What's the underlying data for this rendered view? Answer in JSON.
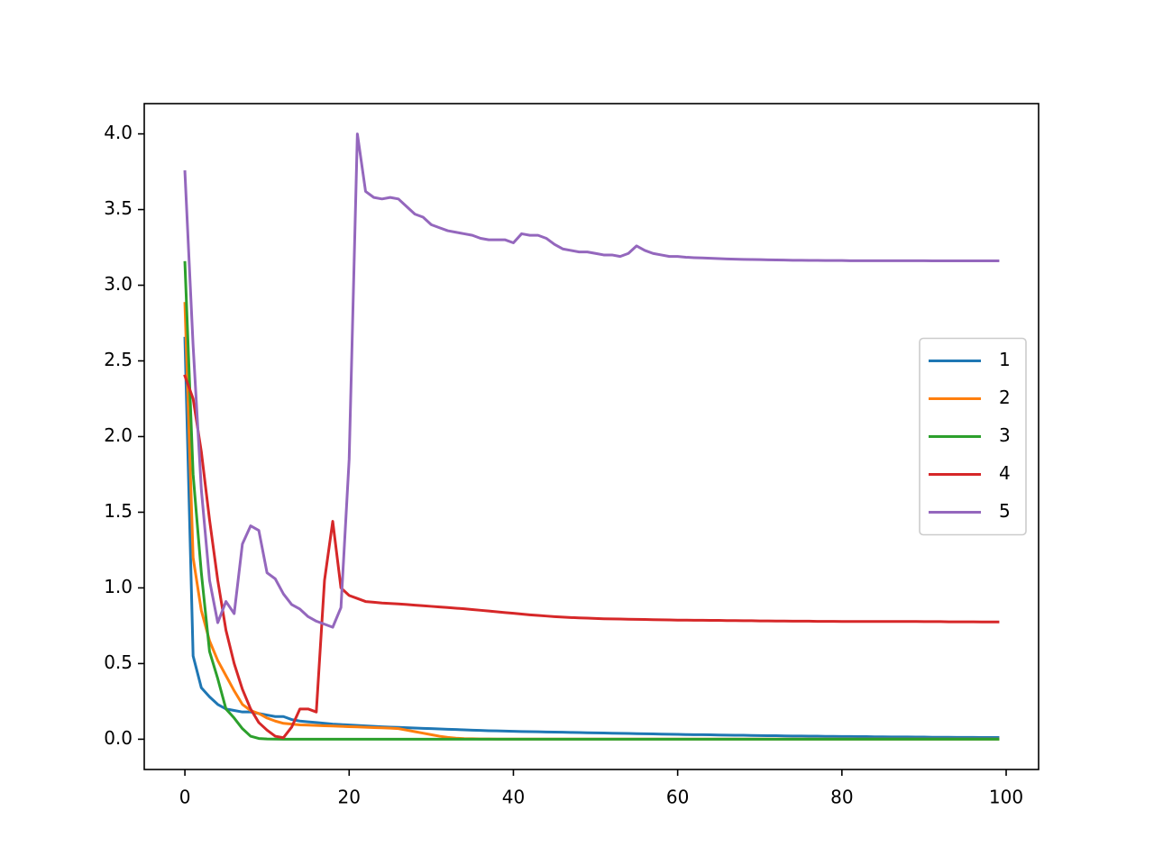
{
  "chart_data": {
    "type": "line",
    "x": [
      0,
      1,
      2,
      3,
      4,
      5,
      6,
      7,
      8,
      9,
      10,
      11,
      12,
      13,
      14,
      15,
      16,
      17,
      18,
      19,
      20,
      21,
      22,
      23,
      24,
      25,
      26,
      27,
      28,
      29,
      30,
      31,
      32,
      33,
      34,
      35,
      36,
      37,
      38,
      39,
      40,
      41,
      42,
      43,
      44,
      45,
      46,
      47,
      48,
      49,
      50,
      51,
      52,
      53,
      54,
      55,
      56,
      57,
      58,
      59,
      60,
      61,
      62,
      63,
      64,
      65,
      66,
      67,
      68,
      69,
      70,
      71,
      72,
      73,
      74,
      75,
      76,
      77,
      78,
      79,
      80,
      81,
      82,
      83,
      84,
      85,
      86,
      87,
      88,
      89,
      90,
      91,
      92,
      93,
      94,
      95,
      96,
      97,
      98,
      99
    ],
    "series": [
      {
        "name": "1",
        "color": "#1f77b4",
        "values": [
          2.65,
          0.55,
          0.34,
          0.28,
          0.23,
          0.2,
          0.19,
          0.18,
          0.18,
          0.17,
          0.16,
          0.15,
          0.15,
          0.13,
          0.12,
          0.115,
          0.11,
          0.105,
          0.1,
          0.097,
          0.094,
          0.091,
          0.088,
          0.085,
          0.082,
          0.08,
          0.078,
          0.076,
          0.074,
          0.072,
          0.07,
          0.068,
          0.066,
          0.064,
          0.062,
          0.06,
          0.058,
          0.056,
          0.055,
          0.054,
          0.052,
          0.051,
          0.05,
          0.049,
          0.048,
          0.047,
          0.046,
          0.045,
          0.044,
          0.043,
          0.042,
          0.041,
          0.04,
          0.039,
          0.038,
          0.037,
          0.036,
          0.035,
          0.034,
          0.033,
          0.032,
          0.031,
          0.03,
          0.03,
          0.029,
          0.028,
          0.027,
          0.026,
          0.026,
          0.025,
          0.024,
          0.023,
          0.023,
          0.022,
          0.021,
          0.021,
          0.02,
          0.02,
          0.019,
          0.019,
          0.018,
          0.018,
          0.017,
          0.017,
          0.016,
          0.016,
          0.015,
          0.015,
          0.015,
          0.014,
          0.014,
          0.013,
          0.013,
          0.013,
          0.012,
          0.012,
          0.012,
          0.011,
          0.011,
          0.011
        ]
      },
      {
        "name": "2",
        "color": "#ff7f0e",
        "values": [
          2.88,
          1.2,
          0.85,
          0.65,
          0.52,
          0.42,
          0.32,
          0.23,
          0.19,
          0.17,
          0.14,
          0.12,
          0.105,
          0.1,
          0.095,
          0.093,
          0.091,
          0.089,
          0.087,
          0.085,
          0.083,
          0.081,
          0.079,
          0.077,
          0.075,
          0.073,
          0.07,
          0.06,
          0.05,
          0.04,
          0.03,
          0.02,
          0.012,
          0.007,
          0.004,
          0.003,
          0.002,
          0.002,
          0.001,
          0.001,
          0.001,
          0.001,
          0.001,
          0.001,
          0.001,
          0.001,
          0.001,
          0.001,
          0.001,
          0.001,
          0.001,
          0.001,
          0.001,
          0.001,
          0.001,
          0.001,
          0.001,
          0.001,
          0.001,
          0.001,
          0.001,
          0.001,
          0.001,
          0.001,
          0.001,
          0.001,
          0.001,
          0.001,
          0.001,
          0.001,
          0.001,
          0.001,
          0.001,
          0.001,
          0.001,
          0.001,
          0.001,
          0.001,
          0.001,
          0.001,
          0.001,
          0.001,
          0.001,
          0.001,
          0.001,
          0.001,
          0.001,
          0.001,
          0.001,
          0.001,
          0.001,
          0.001,
          0.001,
          0.001,
          0.001,
          0.001,
          0.001,
          0.001,
          0.001,
          0.001
        ]
      },
      {
        "name": "3",
        "color": "#2ca02c",
        "values": [
          3.15,
          1.75,
          1.1,
          0.58,
          0.4,
          0.2,
          0.14,
          0.07,
          0.02,
          0.005,
          0.002,
          0.001,
          0,
          0,
          0,
          0,
          0,
          0,
          0,
          0,
          0,
          0,
          0,
          0,
          0,
          0,
          0,
          0,
          0,
          0,
          0,
          0,
          0,
          0,
          0,
          0,
          0,
          0,
          0,
          0,
          0,
          0,
          0,
          0,
          0,
          0,
          0,
          0,
          0,
          0,
          0,
          0,
          0,
          0,
          0,
          0,
          0,
          0,
          0,
          0,
          0,
          0,
          0,
          0,
          0,
          0,
          0,
          0,
          0,
          0,
          0,
          0,
          0,
          0,
          0,
          0,
          0,
          0,
          0,
          0,
          0,
          0,
          0,
          0,
          0,
          0,
          0,
          0,
          0,
          0,
          0,
          0,
          0,
          0,
          0,
          0,
          0,
          0,
          0,
          0
        ]
      },
      {
        "name": "4",
        "color": "#d62728",
        "values": [
          2.4,
          2.25,
          1.9,
          1.45,
          1.05,
          0.72,
          0.5,
          0.33,
          0.2,
          0.11,
          0.06,
          0.02,
          0.01,
          0.08,
          0.2,
          0.2,
          0.18,
          1.05,
          1.44,
          1.0,
          0.95,
          0.93,
          0.91,
          0.905,
          0.9,
          0.897,
          0.894,
          0.89,
          0.886,
          0.882,
          0.878,
          0.874,
          0.87,
          0.866,
          0.862,
          0.857,
          0.852,
          0.847,
          0.842,
          0.837,
          0.832,
          0.827,
          0.822,
          0.818,
          0.814,
          0.81,
          0.807,
          0.804,
          0.802,
          0.8,
          0.798,
          0.796,
          0.795,
          0.794,
          0.793,
          0.792,
          0.791,
          0.79,
          0.789,
          0.788,
          0.787,
          0.787,
          0.786,
          0.786,
          0.785,
          0.785,
          0.784,
          0.784,
          0.783,
          0.783,
          0.782,
          0.782,
          0.781,
          0.781,
          0.78,
          0.78,
          0.78,
          0.779,
          0.779,
          0.779,
          0.778,
          0.778,
          0.778,
          0.778,
          0.778,
          0.778,
          0.778,
          0.778,
          0.778,
          0.778,
          0.777,
          0.777,
          0.777,
          0.776,
          0.776,
          0.776,
          0.776,
          0.775,
          0.775,
          0.775
        ]
      },
      {
        "name": "5",
        "color": "#9467bd",
        "values": [
          3.75,
          2.6,
          1.65,
          1.05,
          0.77,
          0.91,
          0.83,
          1.29,
          1.41,
          1.38,
          1.1,
          1.06,
          0.96,
          0.89,
          0.86,
          0.81,
          0.78,
          0.76,
          0.74,
          0.87,
          1.85,
          4.0,
          3.62,
          3.58,
          3.57,
          3.58,
          3.57,
          3.52,
          3.47,
          3.45,
          3.4,
          3.38,
          3.36,
          3.35,
          3.34,
          3.33,
          3.31,
          3.3,
          3.3,
          3.3,
          3.28,
          3.34,
          3.33,
          3.33,
          3.31,
          3.27,
          3.24,
          3.23,
          3.22,
          3.22,
          3.21,
          3.2,
          3.2,
          3.19,
          3.21,
          3.26,
          3.23,
          3.21,
          3.2,
          3.19,
          3.19,
          3.185,
          3.182,
          3.18,
          3.178,
          3.176,
          3.174,
          3.172,
          3.171,
          3.17,
          3.169,
          3.168,
          3.167,
          3.166,
          3.165,
          3.165,
          3.164,
          3.164,
          3.163,
          3.163,
          3.163,
          3.162,
          3.162,
          3.162,
          3.162,
          3.162,
          3.162,
          3.162,
          3.162,
          3.162,
          3.162,
          3.161,
          3.161,
          3.161,
          3.161,
          3.161,
          3.161,
          3.161,
          3.161,
          3.161
        ]
      }
    ],
    "xlim": [
      -4.95,
      103.95
    ],
    "xticks": [
      0,
      20,
      40,
      60,
      80,
      100
    ],
    "ylim": [
      -0.2,
      4.2
    ],
    "yticks": [
      {
        "value": 0,
        "label": "0.0"
      },
      {
        "value": 0.5,
        "label": "0.5"
      },
      {
        "value": 1,
        "label": "1.0"
      },
      {
        "value": 1.5,
        "label": "1.5"
      },
      {
        "value": 2,
        "label": "2.0"
      },
      {
        "value": 2.5,
        "label": "2.5"
      },
      {
        "value": 3,
        "label": "3.0"
      },
      {
        "value": 3.5,
        "label": "3.5"
      },
      {
        "value": 4,
        "label": "4.0"
      }
    ],
    "legend": "center right"
  }
}
